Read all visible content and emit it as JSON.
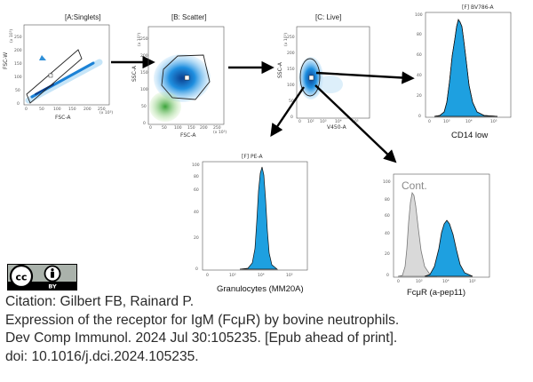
{
  "panels": {
    "singlets": {
      "title": "[A:Singlets]",
      "xlabel": "FSC-A",
      "ylabel": "FSC-W",
      "yticks": [
        "0",
        "50",
        "100",
        "150",
        "200",
        "250"
      ],
      "xticks": [
        "0",
        "50",
        "100",
        "150",
        "200",
        "250"
      ],
      "unit": "(x 10³)"
    },
    "scatter": {
      "title": "[B: Scatter]",
      "xlabel": "FSC-A",
      "ylabel": "SSC-A",
      "yticks": [
        "0",
        "50",
        "100",
        "150",
        "200",
        "250"
      ],
      "xticks": [
        "0",
        "50",
        "100",
        "150",
        "200",
        "250"
      ],
      "unit": "(x 10³)"
    },
    "live": {
      "title": "[C: Live]",
      "xlabel": "V450-A",
      "ylabel": "SSC-A",
      "yticks": [
        "0",
        "50",
        "100",
        "150",
        "200",
        "250"
      ],
      "xticks": [
        "0",
        "10²",
        "10³",
        "10⁴",
        "10⁵"
      ],
      "unit": "(x 10³)"
    },
    "bv786": {
      "title": "[F] BV786-A",
      "xlabel": "CD14 low",
      "yticks": [
        "0",
        "20",
        "40",
        "60",
        "80",
        "100"
      ],
      "xticks": [
        "0",
        "10³",
        "10⁴",
        "10⁵"
      ]
    },
    "pe": {
      "title": "[F] PE-A",
      "xlabel": "Granulocytes (MM20A)",
      "yticks": [
        "0",
        "20",
        "40",
        "60",
        "80",
        "100"
      ],
      "xticks": [
        "0",
        "10³",
        "10⁴",
        "10⁵"
      ]
    },
    "fcmr": {
      "title": "",
      "xlabel": "FcμR (a-pep11)",
      "yticks": [
        "0",
        "20",
        "40",
        "60",
        "80",
        "100"
      ],
      "xticks": [
        "0",
        "10³",
        "10⁴",
        "10⁵"
      ],
      "annotation": "Cont."
    }
  },
  "license": {
    "cc": "cc",
    "by": "BY"
  },
  "citation": {
    "line1": "Citation: Gilbert FB, Rainard P.",
    "line2": "Expression of the receptor for IgM (FcμR) by bovine neutrophils.",
    "line3": "Dev Comp Immunol. 2024 Jul 30:105235. [Epub ahead of print].",
    "line4": "doi: 10.1016/j.dci.2024.105235."
  },
  "colors": {
    "population": "#1ea0e0",
    "population_dark": "#0d6fb5",
    "outline": "#111111",
    "control": "#d9d9d9",
    "low_ssc": "#6cc24a"
  }
}
